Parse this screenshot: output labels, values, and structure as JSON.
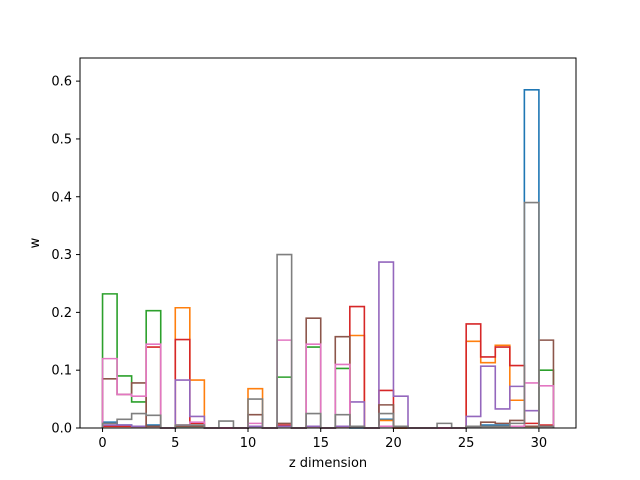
{
  "chart_data": {
    "type": "histogram-step",
    "xlabel": "z dimension",
    "ylabel": "w",
    "xlim": [
      -1.55,
      32.55
    ],
    "ylim": [
      0,
      0.64
    ],
    "xticks": [
      0,
      5,
      10,
      15,
      20,
      25,
      30
    ],
    "yticks": [
      0.0,
      0.1,
      0.2,
      0.3,
      0.4,
      0.5,
      0.6
    ],
    "ytick_labels": [
      "0.0",
      "0.1",
      "0.2",
      "0.3",
      "0.4",
      "0.5",
      "0.6"
    ],
    "bin_edges_start": 0,
    "bin_width": 1,
    "grid": false,
    "series": [
      {
        "color": "#1f77b4",
        "values": [
          0.01,
          0.005,
          0.003,
          0.005,
          0,
          0.003,
          0.003,
          0,
          0,
          0,
          0.003,
          0,
          0.003,
          0,
          0.003,
          0,
          0.003,
          0,
          0,
          0.015,
          0,
          0,
          0,
          0,
          0,
          0.003,
          0.005,
          0.005,
          0.003,
          0.585,
          0.003
        ]
      },
      {
        "color": "#ff7f0e",
        "values": [
          0.003,
          0.003,
          0.003,
          0.003,
          0,
          0.208,
          0.083,
          0,
          0,
          0,
          0.068,
          0,
          0.003,
          0,
          0.003,
          0,
          0.003,
          0.16,
          0,
          0.013,
          0,
          0,
          0,
          0,
          0,
          0.15,
          0.113,
          0.143,
          0.048,
          0.003,
          0.003
        ]
      },
      {
        "color": "#2ca02c",
        "values": [
          0.232,
          0.09,
          0.045,
          0.203,
          0,
          0.003,
          0.003,
          0,
          0,
          0,
          0.003,
          0,
          0.088,
          0,
          0.14,
          0,
          0.103,
          0.003,
          0,
          0.003,
          0,
          0,
          0,
          0,
          0,
          0.003,
          0.003,
          0.003,
          0.003,
          0.003,
          0.1
        ]
      },
      {
        "color": "#d62728",
        "values": [
          0.003,
          0.003,
          0.003,
          0.14,
          0,
          0.153,
          0.008,
          0,
          0,
          0,
          0.003,
          0,
          0.005,
          0,
          0.003,
          0,
          0.003,
          0.21,
          0,
          0.065,
          0,
          0,
          0,
          0,
          0,
          0.18,
          0.123,
          0.14,
          0.108,
          0.008,
          0.005
        ]
      },
      {
        "color": "#9467bd",
        "values": [
          0.005,
          0.005,
          0.003,
          0.003,
          0,
          0.083,
          0.02,
          0,
          0,
          0,
          0.003,
          0,
          0.003,
          0,
          0.003,
          0,
          0.003,
          0.045,
          0,
          0.287,
          0.055,
          0,
          0,
          0,
          0,
          0.02,
          0.107,
          0.033,
          0.072,
          0.03,
          0.003
        ]
      },
      {
        "color": "#8c564b",
        "values": [
          0.085,
          0.058,
          0.078,
          0.003,
          0,
          0.003,
          0.003,
          0,
          0,
          0,
          0.023,
          0,
          0.008,
          0,
          0.19,
          0,
          0.158,
          0.003,
          0,
          0.04,
          0.003,
          0,
          0,
          0,
          0,
          0.003,
          0.01,
          0.008,
          0.013,
          0.003,
          0.152
        ]
      },
      {
        "color": "#e377c2",
        "values": [
          0.12,
          0.058,
          0.055,
          0.145,
          0,
          0.005,
          0.01,
          0,
          0,
          0,
          0.008,
          0,
          0.152,
          0,
          0.145,
          0,
          0.11,
          0.003,
          0,
          0.003,
          0.003,
          0,
          0,
          0,
          0,
          0.003,
          0.003,
          0.003,
          0.003,
          0.078,
          0.073
        ]
      },
      {
        "color": "#7f7f7f",
        "values": [
          0.008,
          0.015,
          0.025,
          0.022,
          0,
          0.005,
          0.005,
          0,
          0.012,
          0,
          0.05,
          0,
          0.3,
          0,
          0.025,
          0,
          0.023,
          0.003,
          0,
          0.025,
          0.003,
          0,
          0,
          0.008,
          0,
          0.003,
          0.003,
          0.003,
          0.008,
          0.39,
          0.003
        ]
      }
    ]
  }
}
